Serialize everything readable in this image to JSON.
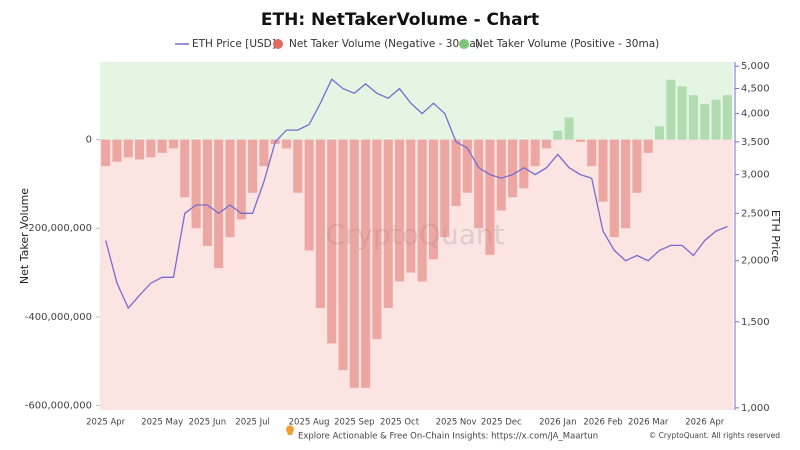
{
  "chart_data": {
    "type": "bar",
    "title": "ETH: NetTakerVolume - Chart",
    "ylabel": "Net Taker Volume",
    "y2label": "ETH Price",
    "watermark": "CryptoQuant",
    "footer": "Explore Actionable & Free On-Chain Insights: https://x.com/JA_Maartun",
    "copyright": "© CryptoQuant. All rights reserved",
    "categories": [
      "2025 Apr",
      null,
      null,
      null,
      null,
      "2025 May",
      null,
      null,
      null,
      "2025 Jun",
      null,
      null,
      null,
      "2025 Jul",
      null,
      null,
      null,
      null,
      "2025 Aug",
      null,
      null,
      null,
      "2025 Sep",
      null,
      null,
      null,
      "2025 Oct",
      null,
      null,
      null,
      null,
      "2025 Nov",
      null,
      null,
      null,
      "2025 Dec",
      null,
      null,
      null,
      null,
      "2026 Jan",
      null,
      null,
      null,
      "2026 Feb",
      null,
      null,
      null,
      "2026 Mar",
      null,
      null,
      null,
      null,
      "2026 Apr",
      null,
      null
    ],
    "ylim": [
      -610000000,
      175000000
    ],
    "yticks": [
      {
        "value": -600000000,
        "label": "-600,000,000"
      },
      {
        "value": -400000000,
        "label": "-400,000,000"
      },
      {
        "value": -200000000,
        "label": "-200,000,000"
      },
      0
    ],
    "y2lim": [
      990,
      5100
    ],
    "y2log": true,
    "y2ticks": [
      {
        "value": 1000,
        "label": "1,000"
      },
      {
        "value": 1500,
        "label": "1,500"
      },
      {
        "value": 2000,
        "label": "2,000"
      },
      {
        "value": 2500,
        "label": "2,500"
      },
      {
        "value": 3000,
        "label": "3,000"
      },
      {
        "value": 3500,
        "label": "3,500"
      },
      {
        "value": 4000,
        "label": "4,000"
      },
      {
        "value": 4500,
        "label": "4,500"
      },
      {
        "value": 5000,
        "label": "5,000"
      }
    ],
    "series": [
      {
        "name": "ETH Price [USD]",
        "type": "line",
        "axis": "y2",
        "color": "#7a6bd0",
        "values": [
          2200,
          1800,
          1600,
          1700,
          1800,
          1850,
          1850,
          2500,
          2600,
          2600,
          2500,
          2600,
          2500,
          2500,
          2900,
          3500,
          3700,
          3700,
          3800,
          4200,
          4700,
          4500,
          4400,
          4600,
          4400,
          4300,
          4500,
          4200,
          4000,
          4200,
          4000,
          3500,
          3400,
          3100,
          3000,
          2950,
          3000,
          3100,
          3000,
          3100,
          3300,
          3100,
          3000,
          2950,
          2300,
          2100,
          2000,
          2050,
          2000,
          2100,
          2150,
          2150,
          2050,
          2200,
          2300,
          2350
        ]
      },
      {
        "name": "Net Taker Volume (Negative - 30ma)",
        "color": "#e06a64",
        "values": [
          -60000000,
          -50000000,
          -40000000,
          -45000000,
          -40000000,
          -30000000,
          -20000000,
          -130000000,
          -200000000,
          -240000000,
          -290000000,
          -220000000,
          -180000000,
          -120000000,
          -60000000,
          -10000000,
          -20000000,
          -120000000,
          -250000000,
          -380000000,
          -460000000,
          -520000000,
          -560000000,
          -560000000,
          -450000000,
          -380000000,
          -320000000,
          -300000000,
          -320000000,
          -270000000,
          -220000000,
          -150000000,
          -120000000,
          -200000000,
          -260000000,
          -160000000,
          -130000000,
          -110000000,
          -60000000,
          -20000000,
          null,
          null,
          -5000000,
          -60000000,
          -140000000,
          -220000000,
          -200000000,
          -120000000,
          -30000000,
          null,
          null,
          null,
          null,
          null,
          null,
          null
        ]
      },
      {
        "name": "Net Taker Volume (Positive - 30ma)",
        "color": "#7cc47c",
        "values": [
          null,
          null,
          null,
          null,
          null,
          null,
          null,
          null,
          null,
          null,
          null,
          null,
          null,
          null,
          null,
          null,
          null,
          null,
          null,
          null,
          null,
          null,
          null,
          null,
          null,
          null,
          null,
          null,
          null,
          null,
          null,
          null,
          null,
          null,
          null,
          null,
          null,
          null,
          null,
          null,
          20000000,
          50000000,
          null,
          null,
          null,
          null,
          null,
          null,
          null,
          30000000,
          135000000,
          120000000,
          100000000,
          80000000,
          90000000,
          100000000
        ]
      }
    ]
  }
}
